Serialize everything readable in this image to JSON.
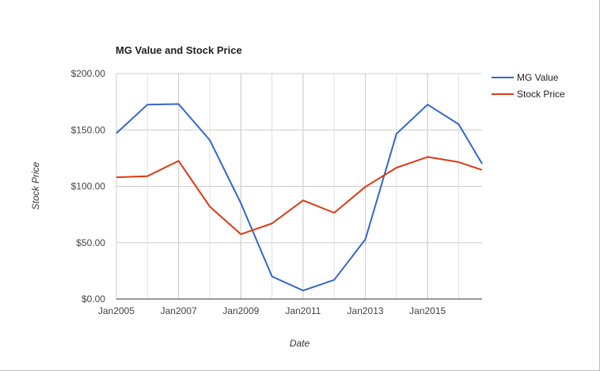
{
  "chart_data": {
    "type": "line",
    "title": "MG Value and Stock Price",
    "xlabel": "Date",
    "ylabel": "Stock Price",
    "x": [
      2005,
      2006,
      2007,
      2008,
      2009,
      2010,
      2011,
      2012,
      2013,
      2014,
      2015,
      2016,
      2016.75
    ],
    "series": [
      {
        "name": "MG Value",
        "color": "#3366cc",
        "values": [
          147,
          172.5,
          173,
          141,
          85,
          20,
          7.5,
          17,
          53,
          146.5,
          172.5,
          155,
          120
        ]
      },
      {
        "name": "Stock Price",
        "color": "#dc3912",
        "values": [
          108,
          109,
          122.5,
          82,
          57.5,
          67,
          87.5,
          76.5,
          99.5,
          116.5,
          126,
          121.5,
          114.5
        ]
      }
    ],
    "xlim": [
      2005,
      2016.75
    ],
    "ylim": [
      0,
      200
    ],
    "x_ticks": [
      {
        "value": 2005,
        "label": "Jan2005"
      },
      {
        "value": 2007,
        "label": "Jan2007"
      },
      {
        "value": 2009,
        "label": "Jan2009"
      },
      {
        "value": 2011,
        "label": "Jan2011"
      },
      {
        "value": 2013,
        "label": "Jan2013"
      },
      {
        "value": 2015,
        "label": "Jan2015"
      }
    ],
    "y_ticks": [
      {
        "value": 0,
        "label": "$0.00"
      },
      {
        "value": 50,
        "label": "$50.00"
      },
      {
        "value": 100,
        "label": "$100.00"
      },
      {
        "value": 150,
        "label": "$150.00"
      },
      {
        "value": 200,
        "label": "$200.00"
      }
    ],
    "grid": true,
    "legend_position": "right"
  }
}
